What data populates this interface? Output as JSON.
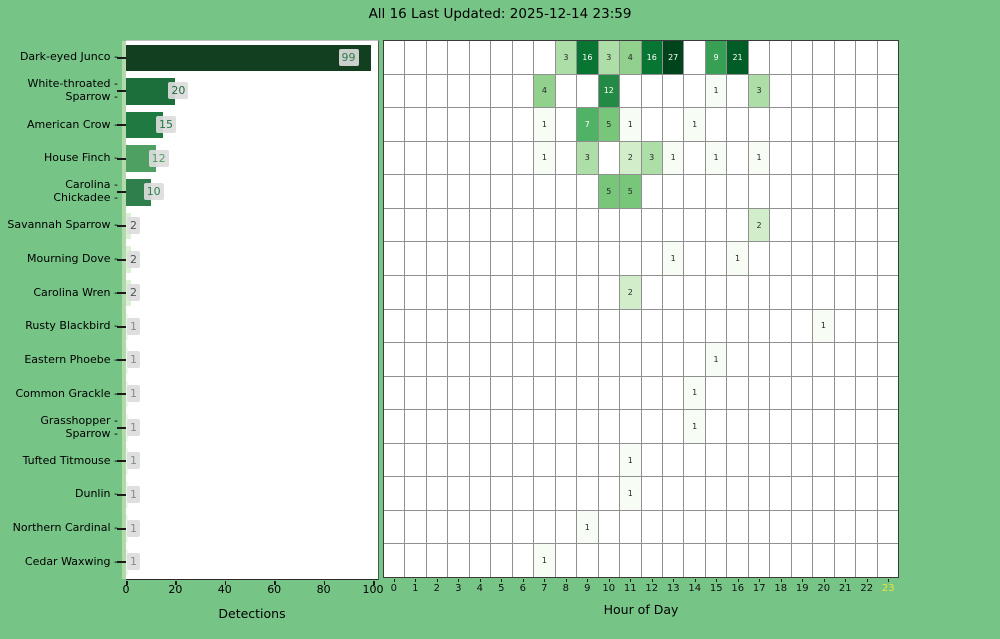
{
  "title": "All 16 Last Updated: 2025-12-14 23:59",
  "colors": {
    "figure_bg": "#77C487",
    "plot_bg": "#ffffff",
    "grid_line": "#909090",
    "pale_spine": "#b3d9ab",
    "hour_highlight": "#e5e73b",
    "label_box_bg": "#dcdcdc",
    "annot_dark": "#262626",
    "annot_light": "#ffffff"
  },
  "chart_data": [
    {
      "type": "bar",
      "orientation": "horizontal",
      "xlabel": "Detections",
      "x_ticks": [
        0,
        20,
        40,
        60,
        80,
        100
      ],
      "xlim": [
        0,
        102
      ],
      "categories": [
        "Dark-eyed Junco",
        "White-throated Sparrow",
        "American Crow",
        "House Finch",
        "Carolina Chickadee",
        "Savannah Sparrow",
        "Mourning Dove",
        "Carolina Wren",
        "Rusty Blackbird",
        "Eastern Phoebe",
        "Common Grackle",
        "Grasshopper Sparrow",
        "Tufted Titmouse",
        "Dunlin",
        "Northern Cardinal",
        "Cedar Waxwing"
      ],
      "values": [
        99,
        20,
        15,
        12,
        10,
        2,
        2,
        2,
        1,
        1,
        1,
        1,
        1,
        1,
        1,
        1
      ],
      "bar_colors": [
        "#113f20",
        "#1c6e3a",
        "#1f7a41",
        "#4d9f62",
        "#2e7f4c",
        "#dbf1d6",
        "#dbf1d6",
        "#dbf1d6",
        "#edf8ea",
        "#edf8ea",
        "#edf8ea",
        "#edf8ea",
        "#edf8ea",
        "#edf8ea",
        "#edf8ea",
        "#edf8ea"
      ],
      "label_colors": [
        "#2f7d48",
        "#1c6e3a",
        "#1f7a41",
        "#4d9f62",
        "#2e7f4c",
        "#4b564e",
        "#4b564e",
        "#4b564e",
        "#828f85",
        "#828f85",
        "#828f85",
        "#828f85",
        "#828f85",
        "#828f85",
        "#828f85",
        "#828f85"
      ],
      "label_lines": [
        [
          "Dark-eyed Junco"
        ],
        [
          "White-throated",
          "Sparrow"
        ],
        [
          "American Crow"
        ],
        [
          "House Finch"
        ],
        [
          "Carolina",
          "Chickadee"
        ],
        [
          "Savannah Sparrow"
        ],
        [
          "Mourning Dove"
        ],
        [
          "Carolina Wren"
        ],
        [
          "Rusty Blackbird"
        ],
        [
          "Eastern Phoebe"
        ],
        [
          "Common Grackle"
        ],
        [
          "Grasshopper",
          "Sparrow"
        ],
        [
          "Tufted Titmouse"
        ],
        [
          "Dunlin"
        ],
        [
          "Northern Cardinal"
        ],
        [
          "Cedar Waxwing"
        ]
      ]
    },
    {
      "type": "heatmap",
      "xlabel": "Hour of Day",
      "hours": [
        0,
        1,
        2,
        3,
        4,
        5,
        6,
        7,
        8,
        9,
        10,
        11,
        12,
        13,
        14,
        15,
        16,
        17,
        18,
        19,
        20,
        21,
        22,
        23
      ],
      "highlighted_hour": 23,
      "colormap": "Greens",
      "norm": "log",
      "vmin": 1,
      "vmax": 27,
      "rows": [
        {
          "species": "Dark-eyed Junco",
          "cells": {
            "8": 3,
            "9": 16,
            "10": 3,
            "11": 4,
            "12": 16,
            "13": 27,
            "15": 9,
            "16": 21
          }
        },
        {
          "species": "White-throated Sparrow",
          "cells": {
            "7": 4,
            "10": 12,
            "15": 1,
            "17": 3
          }
        },
        {
          "species": "American Crow",
          "cells": {
            "7": 1,
            "9": 7,
            "10": 5,
            "11": 1,
            "14": 1
          }
        },
        {
          "species": "House Finch",
          "cells": {
            "7": 1,
            "9": 3,
            "11": 2,
            "12": 3,
            "13": 1,
            "15": 1,
            "17": 1
          }
        },
        {
          "species": "Carolina Chickadee",
          "cells": {
            "10": 5,
            "11": 5
          }
        },
        {
          "species": "Savannah Sparrow",
          "cells": {
            "17": 2
          }
        },
        {
          "species": "Mourning Dove",
          "cells": {
            "13": 1,
            "16": 1
          }
        },
        {
          "species": "Carolina Wren",
          "cells": {
            "11": 2
          }
        },
        {
          "species": "Rusty Blackbird",
          "cells": {
            "20": 1
          }
        },
        {
          "species": "Eastern Phoebe",
          "cells": {
            "15": 1
          }
        },
        {
          "species": "Common Grackle",
          "cells": {
            "14": 1
          }
        },
        {
          "species": "Grasshopper Sparrow",
          "cells": {
            "14": 1
          }
        },
        {
          "species": "Tufted Titmouse",
          "cells": {
            "11": 1
          }
        },
        {
          "species": "Dunlin",
          "cells": {
            "11": 1
          }
        },
        {
          "species": "Northern Cardinal",
          "cells": {
            "9": 1
          }
        },
        {
          "species": "Cedar Waxwing",
          "cells": {
            "7": 1
          }
        }
      ]
    }
  ]
}
